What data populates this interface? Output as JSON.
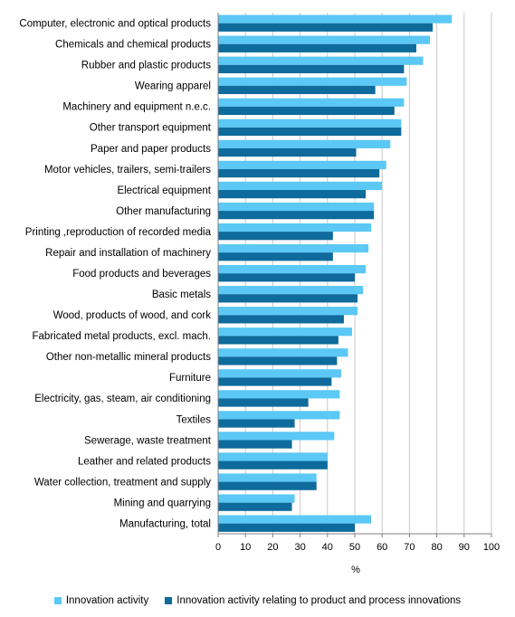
{
  "chart_data": {
    "type": "bar",
    "orientation": "horizontal",
    "categories": [
      "Computer, electronic and optical products",
      "Chemicals and chemical products",
      "Rubber and plastic products",
      "Wearing apparel",
      "Machinery and equipment n.e.c.",
      "Other transport equipment",
      "Paper and paper products",
      "Motor vehicles, trailers, semi-trailers",
      "Electrical equipment",
      "Other manufacturing",
      "Printing ,reproduction of recorded media",
      "Repair and installation of machinery",
      "Food products and beverages",
      "Basic metals",
      "Wood, products of wood, and cork",
      "Fabricated metal products, excl. mach.",
      "Other non-metallic mineral products",
      "Furniture",
      "Electricity, gas, steam, air conditioning",
      "Textiles",
      "Sewerage, waste treatment",
      "Leather and related products",
      "Water collection, treatment and supply",
      "Mining and quarrying",
      "Manufacturing, total"
    ],
    "series": [
      {
        "name": "Innovation activity",
        "color": "#5bc8f5",
        "values": [
          85.5,
          77.5,
          75,
          69,
          68,
          67,
          63,
          61.5,
          60,
          57,
          56,
          55,
          54,
          53,
          51,
          49,
          47.5,
          45,
          44.5,
          44.5,
          42.5,
          40,
          36,
          28,
          56
        ]
      },
      {
        "name": "Innovation activity relating to product and process innovations",
        "color": "#0e6b9c",
        "values": [
          78.5,
          72.5,
          68,
          57.5,
          64.5,
          67,
          50.5,
          59,
          54,
          57,
          42,
          42,
          50,
          51,
          46,
          44,
          43.5,
          41.5,
          33,
          28,
          27,
          40,
          36,
          27,
          50
        ]
      }
    ],
    "xlabel": "%",
    "xlim": [
      0,
      100
    ],
    "xticks": [
      0,
      10,
      20,
      30,
      40,
      50,
      60,
      70,
      80,
      90,
      100
    ],
    "grid": true,
    "legend_position": "bottom"
  }
}
